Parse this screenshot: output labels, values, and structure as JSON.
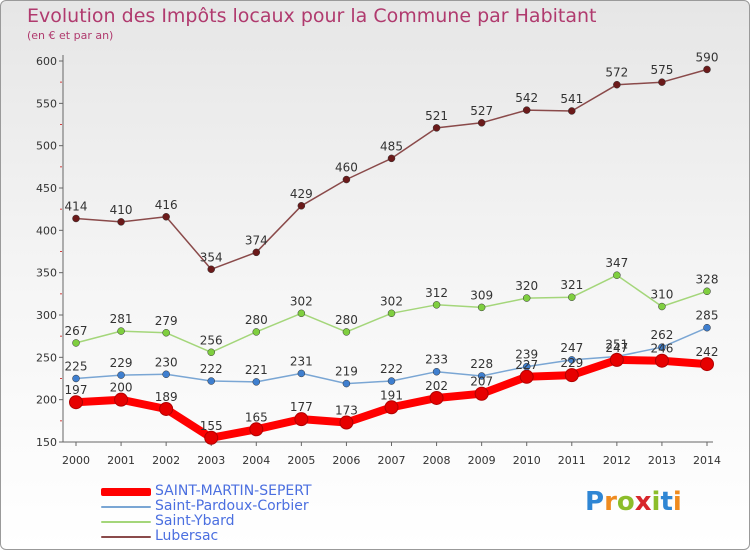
{
  "header": {
    "title": "Evolution des Impôts locaux pour la Commune par Habitant",
    "subtitle": "(en € et par an)"
  },
  "brand": {
    "letters": [
      "P",
      "r",
      "o",
      "x",
      "i",
      "t",
      "i"
    ],
    "letter_colors": [
      "#2f86d4",
      "#ef8b1f",
      "#8cbd2a",
      "#d7262b",
      "#8cbd2a",
      "#2f86d4",
      "#ef8b1f"
    ]
  },
  "chart_data": {
    "type": "line",
    "title": "Evolution des Impôts locaux pour la Commune par Habitant",
    "subtitle": "(en € et par an)",
    "x": [
      "2000",
      "2001",
      "2002",
      "2003",
      "2004",
      "2005",
      "2006",
      "2007",
      "2008",
      "2009",
      "2010",
      "2011",
      "2012",
      "2013",
      "2014"
    ],
    "ylim": [
      150,
      600
    ],
    "yticks": [
      150,
      200,
      250,
      300,
      350,
      400,
      450,
      500,
      550,
      600
    ],
    "grid": false,
    "legend": "bottom-left",
    "series": [
      {
        "name": "SAINT-MARTIN-SEPERT",
        "color": "#ff0000",
        "marker_color": "#e60000",
        "emphasis": true,
        "values": [
          197,
          200,
          189,
          155,
          165,
          177,
          173,
          191,
          202,
          207,
          227,
          229,
          247,
          246,
          242
        ]
      },
      {
        "name": "Saint-Pardoux-Corbier",
        "color": "#7aa6d4",
        "marker_color": "#3f7fcf",
        "emphasis": false,
        "values": [
          225,
          229,
          230,
          222,
          221,
          231,
          219,
          222,
          233,
          228,
          239,
          247,
          251,
          262,
          285
        ]
      },
      {
        "name": "Saint-Ybard",
        "color": "#a4d67a",
        "marker_color": "#7fcf3f",
        "emphasis": false,
        "values": [
          267,
          281,
          279,
          256,
          280,
          302,
          280,
          302,
          312,
          309,
          320,
          321,
          347,
          310,
          328
        ]
      },
      {
        "name": "Lubersac",
        "color": "#8a4a4a",
        "marker_color": "#6b1a1a",
        "emphasis": false,
        "values": [
          414,
          410,
          416,
          354,
          374,
          429,
          460,
          485,
          521,
          527,
          542,
          541,
          572,
          575,
          590
        ]
      }
    ]
  }
}
